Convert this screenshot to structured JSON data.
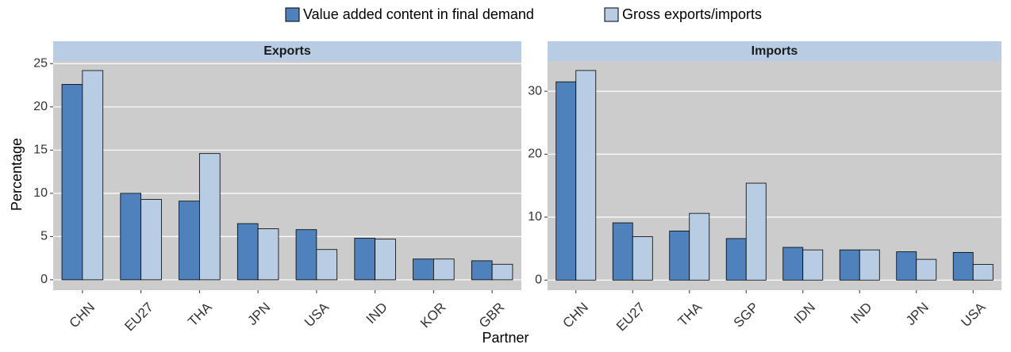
{
  "chart_data": [
    {
      "type": "bar",
      "title": "Exports",
      "ylabel": "Percentage",
      "xlabel": "Partner",
      "categories": [
        "CHN",
        "EU27",
        "THA",
        "JPN",
        "USA",
        "IND",
        "KOR",
        "GBR"
      ],
      "series": [
        {
          "name": "Value added content in final demand",
          "color": "#4f81bd",
          "values": [
            22.6,
            10.0,
            9.1,
            6.5,
            5.8,
            4.8,
            2.4,
            2.2
          ]
        },
        {
          "name": "Gross exports/imports",
          "color": "#b8cce4",
          "values": [
            24.2,
            9.3,
            14.6,
            5.9,
            3.5,
            4.7,
            2.4,
            1.8
          ]
        }
      ],
      "ylim": [
        -1.2,
        25.3
      ],
      "yticks": [
        0,
        5,
        10,
        15,
        20,
        25
      ],
      "grid": true
    },
    {
      "type": "bar",
      "title": "Imports",
      "categories": [
        "CHN",
        "EU27",
        "THA",
        "SGP",
        "IDN",
        "IND",
        "JPN",
        "USA"
      ],
      "series": [
        {
          "name": "Value added content in final demand",
          "color": "#4f81bd",
          "values": [
            31.5,
            9.1,
            7.8,
            6.6,
            5.2,
            4.8,
            4.5,
            4.4
          ]
        },
        {
          "name": "Gross exports/imports",
          "color": "#b8cce4",
          "values": [
            33.3,
            6.9,
            10.6,
            15.4,
            4.8,
            4.8,
            3.3,
            2.5
          ]
        }
      ],
      "ylim": [
        -1.6,
        34.8
      ],
      "yticks": [
        0,
        10,
        20,
        30
      ],
      "grid": true
    }
  ]
}
